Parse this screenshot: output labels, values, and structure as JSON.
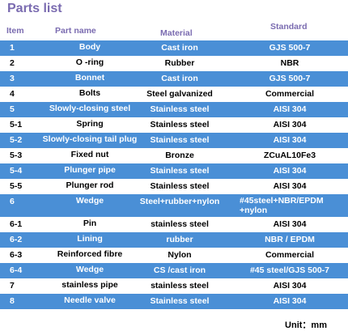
{
  "title": "Parts list",
  "headers": {
    "item": "Item",
    "name": "Part name",
    "material": "Material",
    "standard": "Standard"
  },
  "rows": [
    {
      "item": "1",
      "name": "Body",
      "material": "Cast iron",
      "standard": "GJS 500-7",
      "highlight": true
    },
    {
      "item": "2",
      "name": "O -ring",
      "material": "Rubber",
      "standard": "NBR",
      "highlight": false
    },
    {
      "item": "3",
      "name": "Bonnet",
      "material": "Cast iron",
      "standard": "GJS 500-7",
      "highlight": true
    },
    {
      "item": "4",
      "name": "Bolts",
      "material": "Steel galvanized",
      "standard": "Commercial",
      "highlight": false
    },
    {
      "item": "5",
      "name": "Slowly-closing steel",
      "material": "Stainless   steel",
      "standard": "AISI 304",
      "highlight": true
    },
    {
      "item": "5-1",
      "name": "Spring",
      "material": "Stainless   steel",
      "standard": "AISI 304",
      "highlight": false
    },
    {
      "item": "5-2",
      "name": "Slowly-closing tail plug",
      "material": "Stainless   steel",
      "standard": "AISI 304",
      "highlight": true
    },
    {
      "item": "5-3",
      "name": "Fixed nut",
      "material": "Bronze",
      "standard": "ZCuAL10Fe3",
      "highlight": false
    },
    {
      "item": "5-4",
      "name": "Plunger pipe",
      "material": "Stainless steel",
      "standard": "AISI 304",
      "highlight": true
    },
    {
      "item": "5-5",
      "name": "Plunger rod",
      "material": "Stainless steel",
      "standard": "AISI 304",
      "highlight": false
    },
    {
      "item": "6",
      "name": "Wedge",
      "material": "Steel+rubber+nylon",
      "standard": "#45steel+NBR/EPDM +nylon",
      "highlight": true,
      "tall": true
    },
    {
      "item": "6-1",
      "name": "Pin",
      "material": "stainless steel",
      "standard": "AISI 304",
      "highlight": false
    },
    {
      "item": "6-2",
      "name": "Lining",
      "material": "rubber",
      "standard": "NBR / EPDM",
      "highlight": true
    },
    {
      "item": "6-3",
      "name": "Reinforced fibre",
      "material": "Nylon",
      "standard": "Commercial",
      "highlight": false
    },
    {
      "item": "6-4",
      "name": "Wedge",
      "material": "CS /cast iron",
      "standard": "#45 steel/GJS 500-7",
      "highlight": true
    },
    {
      "item": "7",
      "name": "stainless pipe",
      "material": "stainless steel",
      "standard": "AISI 304",
      "highlight": false
    },
    {
      "item": "8",
      "name": "Needle valve",
      "material": "Stainless steel",
      "standard": "AISI 304",
      "highlight": true
    }
  ],
  "unit": "Unit：mm",
  "colors": {
    "header_text": "#7a6bb0",
    "row_highlight": "#4a8fd6"
  }
}
